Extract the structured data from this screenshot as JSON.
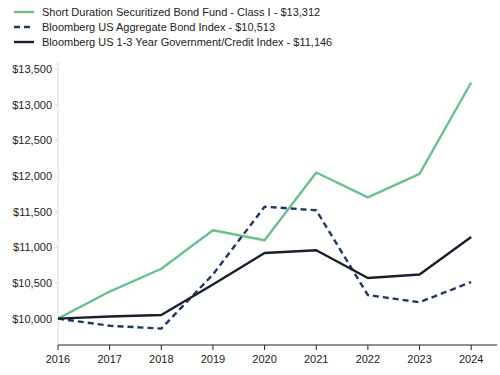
{
  "chart_data": {
    "type": "line",
    "x": [
      2016,
      2017,
      2018,
      2019,
      2020,
      2021,
      2022,
      2023,
      2024
    ],
    "xlim": [
      2016,
      2024.5
    ],
    "xticks": [
      2016,
      2017,
      2018,
      2019,
      2020,
      2021,
      2022,
      2023,
      2024
    ],
    "ylim": [
      9630,
      13600
    ],
    "yticks": [
      {
        "value": 10000,
        "label": "$10,000"
      },
      {
        "value": 10500,
        "label": "$10,500"
      },
      {
        "value": 11000,
        "label": "$11,000"
      },
      {
        "value": 11500,
        "label": "$11,500"
      },
      {
        "value": 12000,
        "label": "$12,000"
      },
      {
        "value": 12500,
        "label": "$12,500"
      },
      {
        "value": 13000,
        "label": "$13,000"
      },
      {
        "value": 13500,
        "label": "$13,500"
      }
    ],
    "grid": false,
    "legend": "top-left",
    "series": [
      {
        "name": "Short Duration Securitized Bond Fund - Class I - $13,312",
        "color": "#6dbf91",
        "line_style": "solid",
        "values": [
          10000,
          10380,
          10700,
          11240,
          11100,
          12050,
          11700,
          12030,
          13312
        ]
      },
      {
        "name": "Bloomberg US Aggregate Bond Index - $10,513",
        "color": "#1f3864",
        "line_style": "dashed",
        "values": [
          10000,
          9900,
          9860,
          10620,
          11570,
          11520,
          10330,
          10230,
          10513
        ]
      },
      {
        "name": "Bloomberg US 1-3 Year Government/Credit Index - $11,146",
        "color": "#1a1f2e",
        "line_style": "solid",
        "values": [
          10000,
          10030,
          10050,
          10480,
          10920,
          10960,
          10570,
          10620,
          11146
        ]
      }
    ]
  }
}
